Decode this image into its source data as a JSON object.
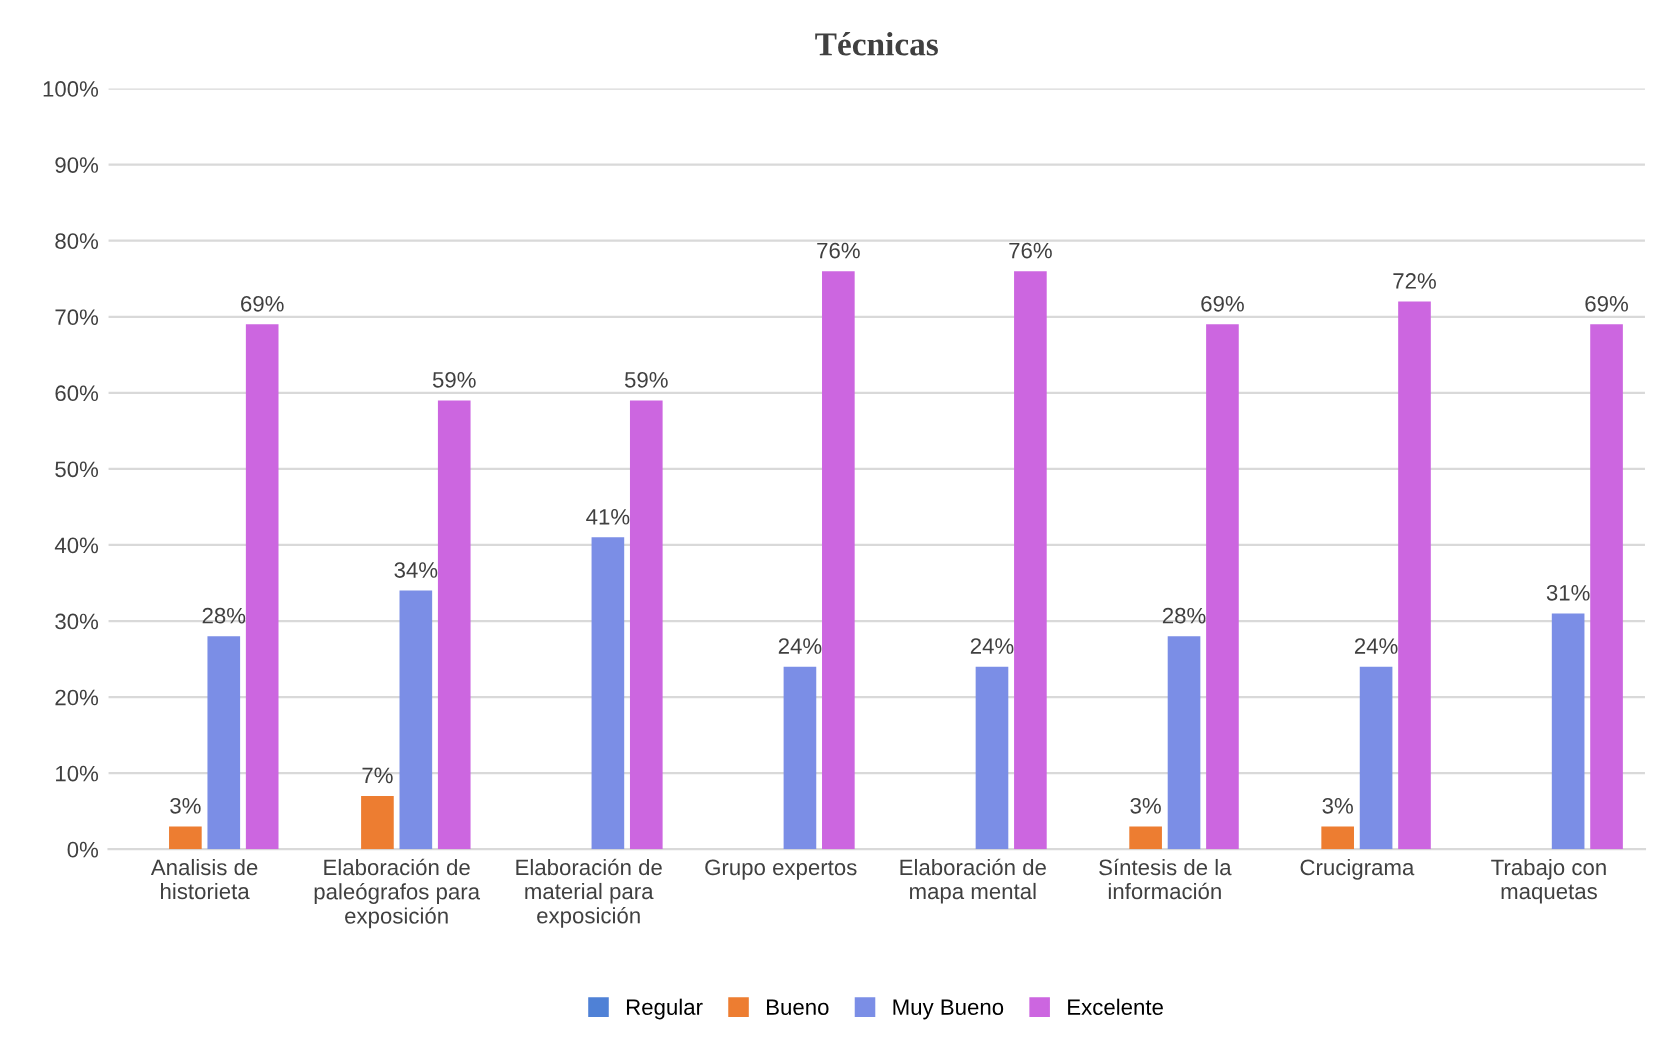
{
  "chart_data": {
    "type": "bar",
    "title": "Técnicas",
    "categories": [
      "Analisis de\nhistorieta",
      "Elaboración de\npaleógrafos para\nexposición",
      "Elaboración de\nmaterial para\nexposición",
      "Grupo expertos",
      "Elaboración de\nmapa mental",
      "Síntesis de la\ninformación",
      "Crucigrama",
      "Trabajo con\nmaquetas"
    ],
    "series": [
      {
        "name": "Regular",
        "color": "#4f81d6",
        "values": [
          null,
          null,
          null,
          null,
          null,
          null,
          null,
          null
        ]
      },
      {
        "name": "Bueno",
        "color": "#ed7d31",
        "values": [
          3,
          7,
          null,
          null,
          null,
          3,
          3,
          null
        ],
        "value_labels": [
          "3%",
          "7%",
          null,
          null,
          null,
          "3%",
          "3%",
          null
        ]
      },
      {
        "name": "Muy Bueno",
        "color": "#7b8ee6",
        "values": [
          28,
          34,
          41,
          24,
          24,
          28,
          24,
          31
        ],
        "value_labels": [
          "28%",
          "34%",
          "41%",
          "24%",
          "24%",
          "28%",
          "24%",
          "31%"
        ]
      },
      {
        "name": "Excelente",
        "color": "#cc66e0",
        "values": [
          69,
          59,
          59,
          76,
          76,
          69,
          72,
          69
        ],
        "value_labels": [
          "69%",
          "59%",
          "59%",
          "76%",
          "76%",
          "69%",
          "72%",
          "69%"
        ]
      }
    ],
    "ylim": [
      0,
      100
    ],
    "yticks": [
      {
        "value": 0,
        "label": "0%"
      },
      {
        "value": 10,
        "label": "10%"
      },
      {
        "value": 20,
        "label": "20%"
      },
      {
        "value": 30,
        "label": "30%"
      },
      {
        "value": 40,
        "label": "40%"
      },
      {
        "value": 50,
        "label": "50%"
      },
      {
        "value": 60,
        "label": "60%"
      },
      {
        "value": 70,
        "label": "70%"
      },
      {
        "value": 80,
        "label": "80%"
      },
      {
        "value": 90,
        "label": "90%"
      },
      {
        "value": 100,
        "label": "100%"
      }
    ],
    "grid": "y",
    "legend": "bottom"
  }
}
